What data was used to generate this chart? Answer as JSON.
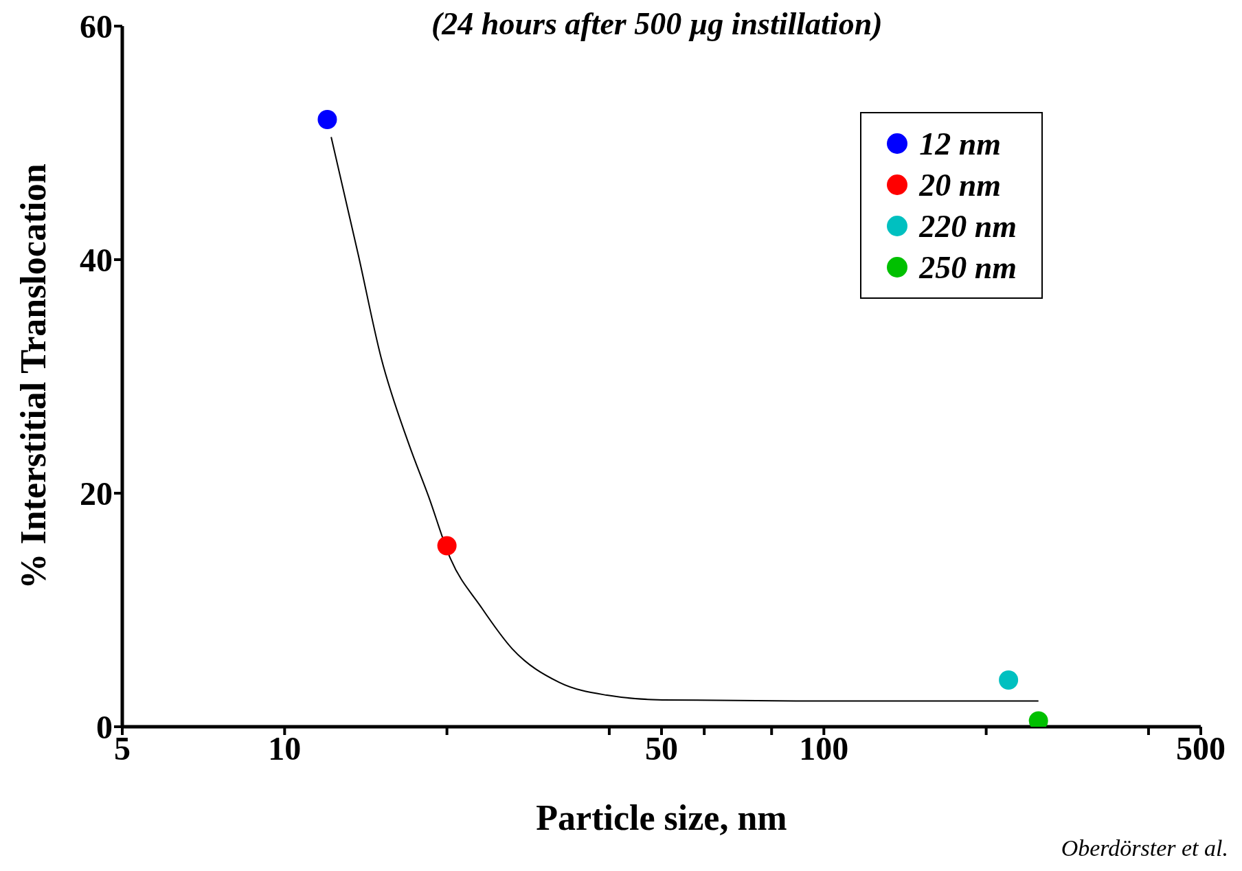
{
  "chart_data": {
    "type": "scatter",
    "title": "(24 hours after 500 µg instillation)",
    "xlabel": "Particle size, nm",
    "ylabel": "% Interstitial Translocation",
    "log": "x",
    "xlim": [
      5,
      500
    ],
    "ylim": [
      0,
      60
    ],
    "xticks": [
      5,
      10,
      {
        "value": 20,
        "label": null
      },
      {
        "value": 40,
        "label": null
      },
      50,
      {
        "value": 60,
        "label": null
      },
      {
        "value": 80,
        "label": null
      },
      100,
      {
        "value": 200,
        "label": null
      },
      {
        "value": 400,
        "label": null
      },
      500
    ],
    "yticks": [
      0,
      20,
      40,
      60
    ],
    "grid": false,
    "legend": "top right",
    "marker": "circle",
    "series": [
      {
        "name": "12 nm",
        "color": "#0000ff",
        "x": [
          12
        ],
        "values": [
          52
        ]
      },
      {
        "name": "20 nm",
        "color": "#ff0000",
        "x": [
          20
        ],
        "values": [
          15.5
        ]
      },
      {
        "name": "220 nm",
        "color": "#00c0c0",
        "x": [
          220
        ],
        "values": [
          4
        ]
      },
      {
        "name": "250 nm",
        "color": "#00c000",
        "x": [
          250
        ],
        "values": [
          0.5
        ]
      },
      {
        "type": "line",
        "color": "#000000",
        "marker": "none",
        "x": [
          12.2,
          13.7,
          15.1,
          17,
          18.5,
          20.3,
          23.1,
          26.4,
          32.3,
          39.6,
          50.2,
          89,
          250
        ],
        "values": [
          50.5,
          40.4,
          31.6,
          24.2,
          19.7,
          14.4,
          10.3,
          6.7,
          3.8,
          2.7,
          2.3,
          2.2,
          2.2
        ]
      }
    ],
    "annotations": [
      "Oberdörster et al."
    ]
  }
}
